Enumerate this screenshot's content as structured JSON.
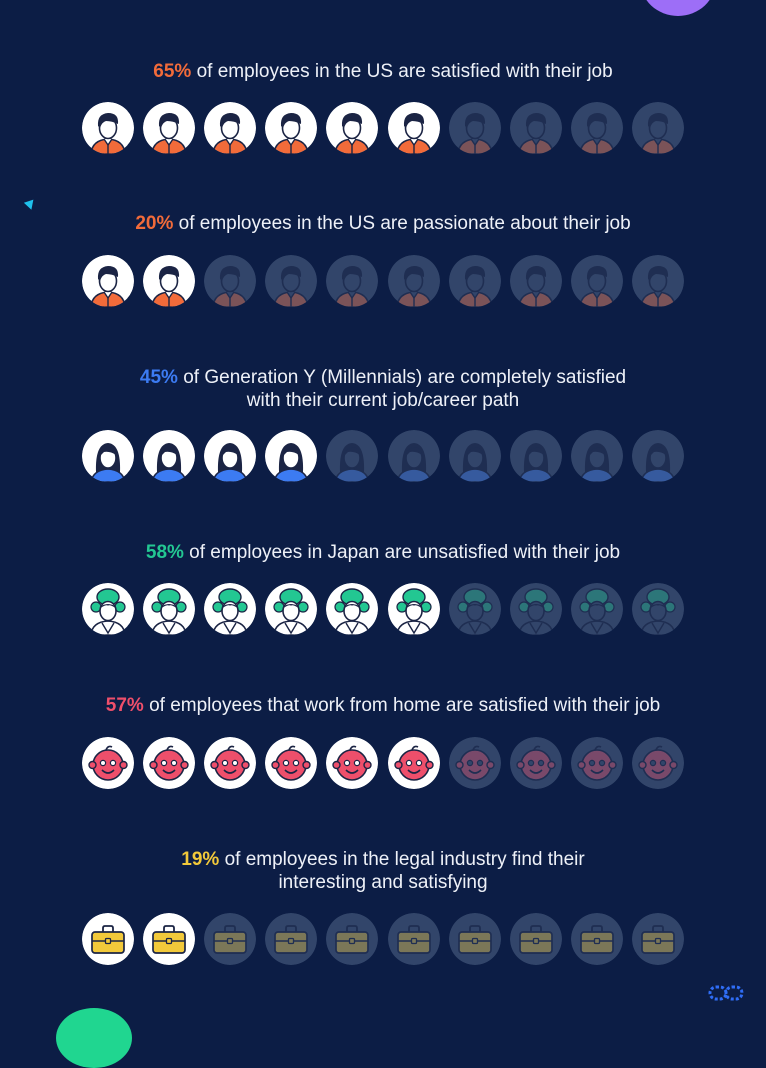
{
  "colors": {
    "background": "#0c1d45",
    "accent_purple": "#9d6ef7",
    "accent_green": "#20d690",
    "accent_cyan": "#1fc1ec",
    "inactive_circle": "#32456a"
  },
  "decor": {
    "logo_icon": "chain-link-icon",
    "triangle_icon": "triangle-marker-icon"
  },
  "chart_data": {
    "type": "table",
    "icons_per_row": 10,
    "stats": [
      {
        "value": "65%",
        "rest": " of employees in the US are satisfied with their job",
        "lines": [],
        "percent": 65,
        "filled_icons": 6,
        "icon": "man-icon",
        "color": "#f26b3a"
      },
      {
        "value": "20%",
        "rest": " of employees in the US are passionate about their job",
        "lines": [],
        "percent": 20,
        "filled_icons": 2,
        "icon": "man-icon",
        "color": "#f26b3a"
      },
      {
        "value": "45%",
        "rest": "",
        "lines": [
          " of Generation Y (Millennials) are completely satisfied",
          "with their current job/career path"
        ],
        "percent": 45,
        "filled_icons": 4,
        "icon": "woman-icon",
        "color": "#3c7bf2"
      },
      {
        "value": "58%",
        "rest": " of employees in Japan are unsatisfied with their job",
        "lines": [],
        "percent": 58,
        "filled_icons": 6,
        "icon": "geisha-icon",
        "color": "#23c792"
      },
      {
        "value": "57%",
        "rest": " of employees that work from home are satisfied with their job",
        "lines": [],
        "percent": 57,
        "filled_icons": 6,
        "icon": "baby-face-icon",
        "color": "#ee4f6b"
      },
      {
        "value": "19%",
        "rest": "",
        "lines": [
          " of employees in the legal industry find their",
          "interesting and satisfying"
        ],
        "percent": 19,
        "filled_icons": 2,
        "icon": "briefcase-icon",
        "color": "#f2c93a"
      }
    ]
  }
}
